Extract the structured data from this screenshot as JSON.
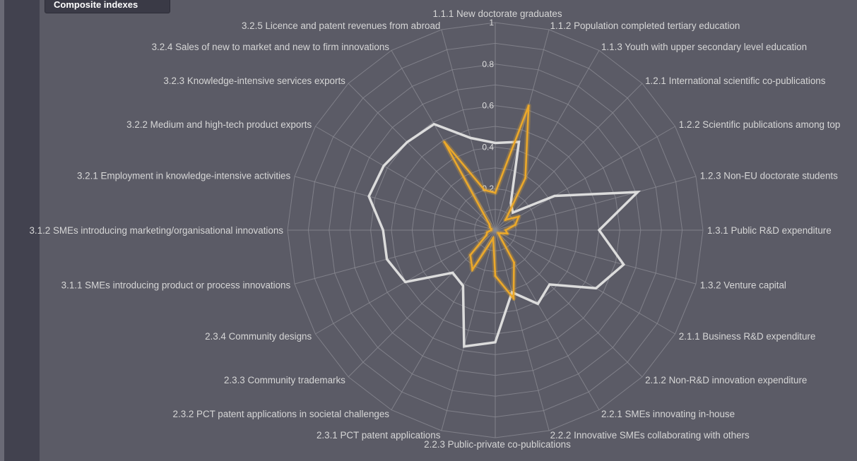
{
  "tab": {
    "label": "Composite indexes"
  },
  "colors": {
    "background": "#5b5b66",
    "grid": "#8a8a92",
    "series_white": "#dcdcdc",
    "series_orange": "#eba82a"
  },
  "chart_data": {
    "type": "radar",
    "title": "",
    "rmax": 1,
    "ticks": [
      0.2,
      0.4,
      0.6,
      0.8,
      1
    ],
    "tick_labels": [
      "0.2",
      "0.4",
      "0.6",
      "0.8",
      "1"
    ],
    "categories": [
      "1.1.1 New doctorate graduates",
      "1.1.2 Population completed tertiary education",
      "1.1.3 Youth with upper secondary level education",
      "1.2.1 International scientific co-publications",
      "1.2.2 Scientific publications among top",
      "1.2.3 Non-EU doctorate students",
      "1.3.1 Public R&D expenditure",
      "1.3.2 Venture capital",
      "2.1.1 Business R&D expenditure",
      "2.1.2 Non-R&D innovation expenditure",
      "2.2.1 SMEs innovating in-house",
      "2.2.2 Innovative SMEs collaborating with others",
      "2.2.3 Public-private co-publications",
      "2.3.1 PCT patent applications",
      "2.3.2 PCT patent applications in societal challenges",
      "2.3.3 Community trademarks",
      "2.3.4 Community designs",
      "3.1.1 SMEs introducing product or process innovations",
      "3.1.2 SMEs introducing marketing/organisational innovations",
      "3.2.1 Employment in knowledge-intensive activities",
      "3.2.2 Medium and high-tech product exports",
      "3.2.3 Knowledge-intensive services exports",
      "3.2.4 Sales of new to market and new to firm innovations",
      "3.2.5 Licence and patent revenues from abroad"
    ],
    "series": [
      {
        "color": "#dcdcdc",
        "values": [
          0.42,
          0.44,
          0.15,
          0.12,
          0.33,
          0.71,
          0.5,
          0.64,
          0.56,
          0.37,
          0.41,
          0.31,
          0.54,
          0.58,
          0.31,
          0.29,
          0.5,
          0.54,
          0.54,
          0.63,
          0.62,
          0.6,
          0.59,
          0.46
        ]
      },
      {
        "color": "#eba82a",
        "values": [
          0.18,
          0.62,
          0.29,
          0.07,
          0.13,
          0.1,
          0.05,
          0.06,
          0.03,
          0.02,
          0.18,
          0.34,
          0.22,
          0.04,
          0.22,
          0.17,
          0.05,
          0.04,
          0.02,
          0.02,
          0.03,
          0.04,
          0.49,
          0.2
        ]
      }
    ]
  }
}
